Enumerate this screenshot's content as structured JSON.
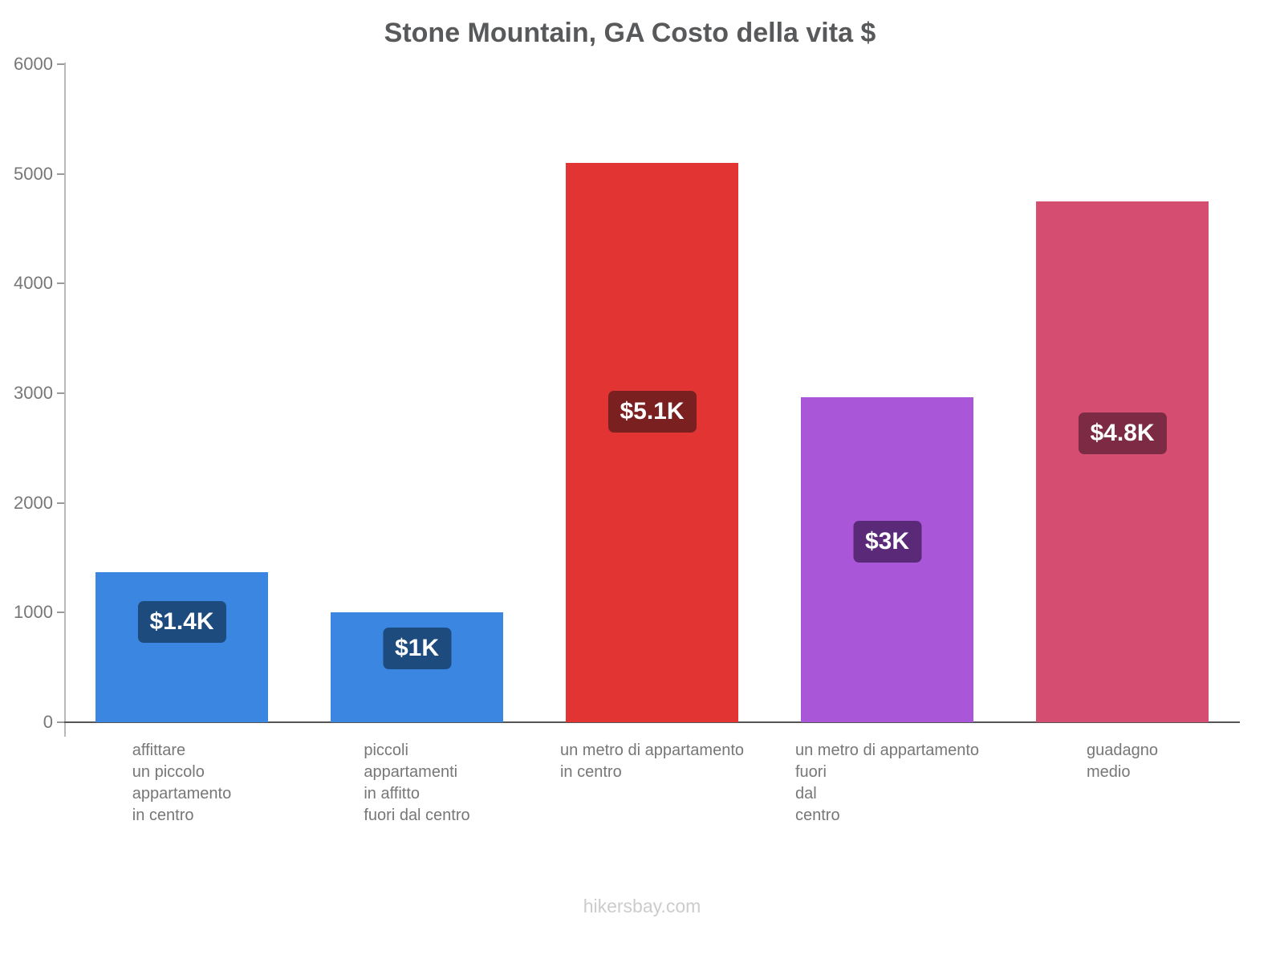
{
  "footer": "hikersbay.com",
  "chart_data": {
    "type": "bar",
    "title": "Stone Mountain, GA Costo della vita $",
    "categories": [
      "affittare\nun piccolo\nappartamento\nin centro",
      "piccoli\nappartamenti\nin affitto\nfuori dal centro",
      "un metro di appartamento\nin centro",
      "un metro di appartamento\nfuori\ndal\ncentro",
      "guadagno\nmedio"
    ],
    "values": [
      1370,
      1000,
      5100,
      2960,
      4750
    ],
    "value_labels": [
      "$1.4K",
      "$1K",
      "$5.1K",
      "$3K",
      "$4.8K"
    ],
    "bar_colors": [
      "#3b86e0",
      "#3b86e0",
      "#e23432",
      "#aa56d8",
      "#d64d72"
    ],
    "label_bg_colors": [
      "#1d4b7d",
      "#1d4b7d",
      "#7b2020",
      "#5a2a78",
      "#7d2b44"
    ],
    "xlabel": "",
    "ylabel": "",
    "ylim": [
      0,
      6000
    ],
    "yticks": [
      0,
      1000,
      2000,
      3000,
      4000,
      5000,
      6000
    ],
    "grid": false,
    "legend": false
  }
}
